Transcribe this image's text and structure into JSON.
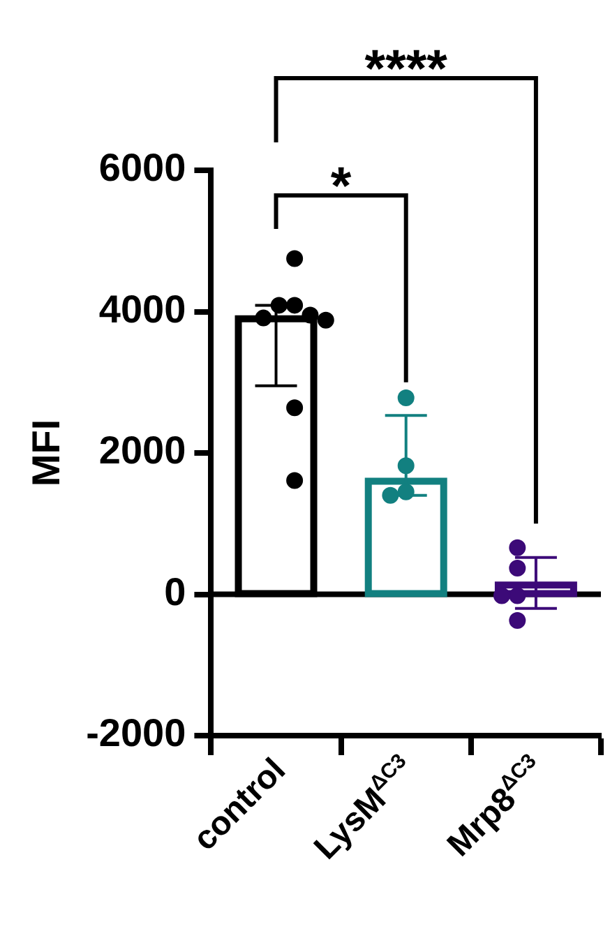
{
  "chart_data": {
    "type": "bar",
    "ylabel": "MFI",
    "categories": [
      "control",
      "LysM$^{ΔC3}$",
      "Mrp8$^{ΔC3}$"
    ],
    "series": [
      {
        "type": "bar",
        "colors": [
          "#000000",
          "#128080",
          "#3c0a78"
        ],
        "values": [
          3900,
          1600,
          130
        ],
        "errors": [
          [
            2950,
            4090
          ],
          [
            1400,
            2530
          ],
          [
            -200,
            520
          ]
        ]
      },
      {
        "type": "scatter",
        "color": "#000000",
        "x": [
          "control",
          "control",
          "control",
          "control",
          "control",
          "control",
          "control",
          "control"
        ],
        "values": [
          4750,
          4090,
          4090,
          3950,
          3910,
          3880,
          2640,
          1610
        ]
      },
      {
        "type": "scatter",
        "color": "#128080",
        "x": [
          "LysM$^{ΔC3}$",
          "LysM$^{ΔC3}$",
          "LysM$^{ΔC3}$",
          "LysM$^{ΔC3}$"
        ],
        "values": [
          2780,
          1820,
          1450,
          1400
        ]
      },
      {
        "type": "scatter",
        "color": "#3c0a78",
        "x": [
          "Mrp8$^{ΔC3}$",
          "Mrp8$^{ΔC3}$",
          "Mrp8$^{ΔC3}$",
          "Mrp8$^{ΔC3}$",
          "Mrp8$^{ΔC3}$"
        ],
        "values": [
          660,
          370,
          -20,
          -20,
          -370
        ]
      }
    ],
    "ylim": [
      -2000,
      6000
    ],
    "yticks": [
      -2000,
      0,
      2000,
      4000,
      6000
    ],
    "grid": false,
    "legend": false,
    "marker": "circle",
    "ref_lines": [
      {
        "axis": "y",
        "value": 0,
        "color": "#000000"
      }
    ],
    "annotations": [
      "*",
      "****"
    ]
  }
}
